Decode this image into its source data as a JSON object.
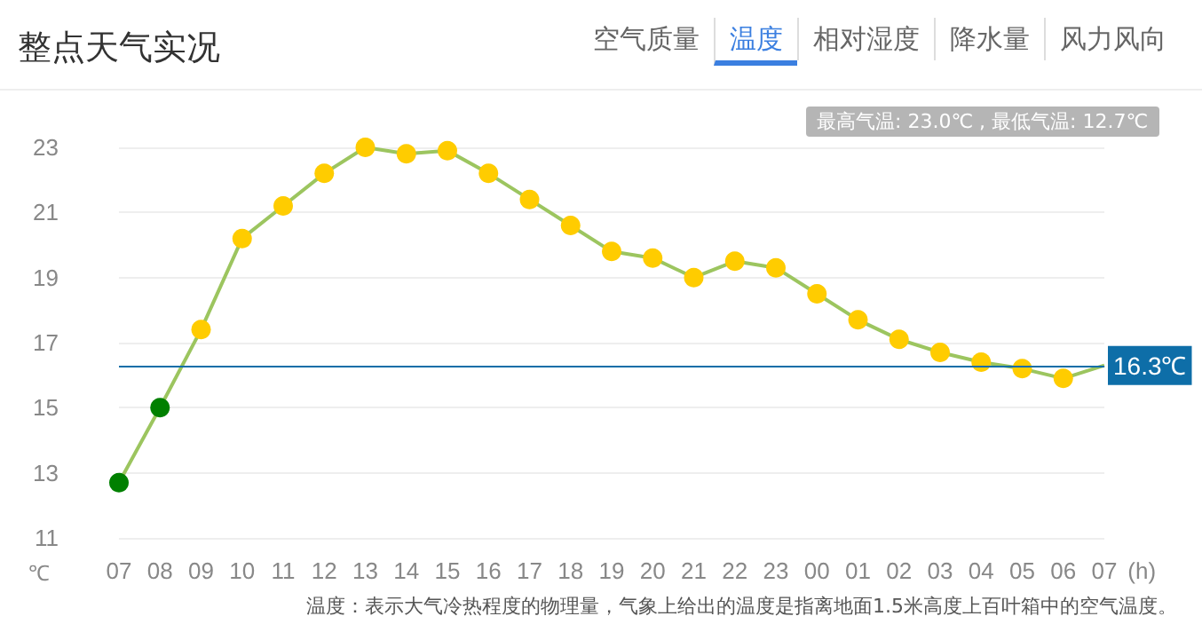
{
  "chart_data": {
    "type": "line",
    "title": "整点天气实况",
    "xlabel": "(h)",
    "ylabel": "℃",
    "categories": [
      "07",
      "08",
      "09",
      "10",
      "11",
      "12",
      "13",
      "14",
      "15",
      "16",
      "17",
      "18",
      "19",
      "20",
      "21",
      "22",
      "23",
      "00",
      "01",
      "02",
      "03",
      "04",
      "05",
      "06",
      "07"
    ],
    "series": [
      {
        "color": "#9cc55f",
        "values": [
          12.7,
          15.0,
          17.4,
          20.2,
          21.2,
          22.2,
          23.0,
          22.8,
          22.9,
          22.2,
          21.4,
          20.6,
          19.8,
          19.6,
          19.0,
          19.5,
          19.3,
          18.5,
          17.7,
          17.1,
          16.7,
          16.4,
          16.2,
          15.9,
          16.3
        ],
        "colors": [
          "#008000",
          "#008000",
          "#ffcc00",
          "#ffcc00",
          "#ffcc00",
          "#ffcc00",
          "#ffcc00",
          "#ffcc00",
          "#ffcc00",
          "#ffcc00",
          "#ffcc00",
          "#ffcc00",
          "#ffcc00",
          "#ffcc00",
          "#ffcc00",
          "#ffcc00",
          "#ffcc00",
          "#ffcc00",
          "#ffcc00",
          "#ffcc00",
          "#ffcc00",
          "#ffcc00",
          "#ffcc00",
          "#ffcc00",
          null
        ]
      }
    ],
    "ylim": [
      11,
      23
    ],
    "yticks": [
      11,
      13,
      15,
      17,
      19,
      21,
      23
    ],
    "grid": "y",
    "marker": "circle",
    "ref_lines": [
      {
        "axis": "y",
        "value": 16.3,
        "label": "16.3℃",
        "color": "#0e6ea8"
      }
    ],
    "annotations": [
      "空气质量",
      "温度",
      "相对湿度",
      "降水量",
      "风力风向",
      "最高气温: 23.0℃ , 最低气温: 12.7℃",
      "温度：表示大气冷热程度的物理量，气象上给出的温度是指离地面1.5米高度上百叶箱中的空气温度。"
    ]
  }
}
